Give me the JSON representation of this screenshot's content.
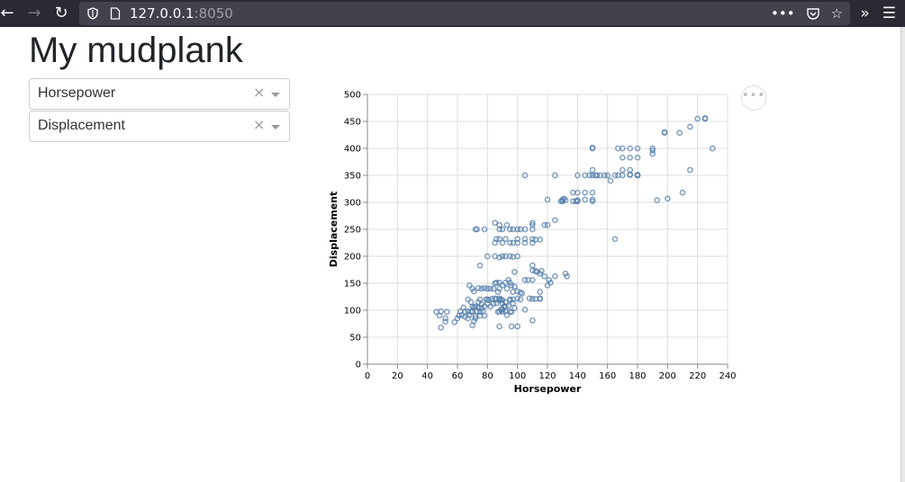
{
  "browser": {
    "url_host": "127.0.0.1",
    "url_port": ":8050"
  },
  "page": {
    "title": "My mudplank"
  },
  "dropdowns": [
    {
      "value": "Horsepower",
      "clear": "×"
    },
    {
      "value": "Displacement",
      "clear": "×"
    }
  ],
  "chart_actions_label": "•••",
  "chart_data": {
    "type": "scatter",
    "xlabel": "Horsepower",
    "ylabel": "Displacement",
    "xlim": [
      0,
      240
    ],
    "ylim": [
      0,
      500
    ],
    "xticks": [
      0,
      20,
      40,
      60,
      80,
      100,
      120,
      140,
      160,
      180,
      200,
      220,
      240
    ],
    "yticks": [
      0,
      50,
      100,
      150,
      200,
      250,
      300,
      350,
      400,
      450,
      500
    ],
    "grid": true,
    "point_color": "#4c78a8",
    "points": [
      [
        46,
        97
      ],
      [
        48,
        90
      ],
      [
        49,
        98
      ],
      [
        52,
        85
      ],
      [
        52,
        79
      ],
      [
        53,
        97
      ],
      [
        49,
        68
      ],
      [
        58,
        78
      ],
      [
        60,
        85
      ],
      [
        61,
        90
      ],
      [
        62,
        98
      ],
      [
        63,
        91
      ],
      [
        64,
        105
      ],
      [
        65,
        97
      ],
      [
        65,
        88
      ],
      [
        67,
        98
      ],
      [
        67,
        85
      ],
      [
        68,
        91
      ],
      [
        69,
        97
      ],
      [
        70,
        72
      ],
      [
        70,
        98
      ],
      [
        71,
        105
      ],
      [
        71,
        80
      ],
      [
        72,
        85
      ],
      [
        72,
        89
      ],
      [
        73,
        98
      ],
      [
        74,
        105
      ],
      [
        75,
        97
      ],
      [
        75,
        90
      ],
      [
        76,
        104
      ],
      [
        67,
        120
      ],
      [
        69,
        115
      ],
      [
        70,
        107
      ],
      [
        72,
        107
      ],
      [
        74,
        115
      ],
      [
        75,
        120
      ],
      [
        76,
        111
      ],
      [
        77,
        98
      ],
      [
        78,
        90
      ],
      [
        78,
        107
      ],
      [
        79,
        120
      ],
      [
        80,
        120
      ],
      [
        80,
        112
      ],
      [
        81,
        119
      ],
      [
        82,
        107
      ],
      [
        83,
        121
      ],
      [
        84,
        112
      ],
      [
        85,
        122
      ],
      [
        86,
        120
      ],
      [
        86,
        113
      ],
      [
        87,
        97
      ],
      [
        87,
        134
      ],
      [
        88,
        119
      ],
      [
        88,
        122
      ],
      [
        89,
        120
      ],
      [
        90,
        112
      ],
      [
        90,
        119
      ],
      [
        90,
        97
      ],
      [
        91,
        107
      ],
      [
        92,
        107
      ],
      [
        92,
        115
      ],
      [
        94,
        108
      ],
      [
        95,
        120
      ],
      [
        95,
        119
      ],
      [
        96,
        97
      ],
      [
        97,
        120
      ],
      [
        97,
        113
      ],
      [
        98,
        104
      ],
      [
        100,
        122
      ],
      [
        102,
        120
      ],
      [
        105,
        101
      ],
      [
        110,
        81
      ],
      [
        88,
        98
      ],
      [
        89,
        101
      ],
      [
        92,
        98
      ],
      [
        95,
        97
      ],
      [
        93,
        91
      ],
      [
        90,
        101
      ],
      [
        96,
        70
      ],
      [
        100,
        70
      ],
      [
        88,
        70
      ],
      [
        68,
        146
      ],
      [
        70,
        140
      ],
      [
        71,
        135
      ],
      [
        74,
        141
      ],
      [
        76,
        140
      ],
      [
        78,
        141
      ],
      [
        80,
        140
      ],
      [
        82,
        140
      ],
      [
        84,
        140
      ],
      [
        85,
        150
      ],
      [
        86,
        151
      ],
      [
        88,
        140
      ],
      [
        88,
        151
      ],
      [
        90,
        146
      ],
      [
        92,
        151
      ],
      [
        93,
        140
      ],
      [
        94,
        156
      ],
      [
        95,
        151
      ],
      [
        96,
        146
      ],
      [
        97,
        134
      ],
      [
        98,
        144
      ],
      [
        100,
        135
      ],
      [
        102,
        133
      ],
      [
        103,
        131
      ],
      [
        105,
        156
      ],
      [
        107,
        156
      ],
      [
        110,
        156
      ],
      [
        110,
        183
      ],
      [
        110,
        174
      ],
      [
        112,
        173
      ],
      [
        113,
        171
      ],
      [
        115,
        168
      ],
      [
        116,
        173
      ],
      [
        118,
        163
      ],
      [
        120,
        146
      ],
      [
        121,
        156
      ],
      [
        122,
        151
      ],
      [
        125,
        163
      ],
      [
        115,
        134
      ],
      [
        132,
        168
      ],
      [
        133,
        163
      ],
      [
        108,
        122
      ],
      [
        110,
        121
      ],
      [
        112,
        121
      ],
      [
        115,
        121
      ],
      [
        115,
        122
      ],
      [
        75,
        183
      ],
      [
        80,
        200
      ],
      [
        85,
        200
      ],
      [
        88,
        198
      ],
      [
        90,
        200
      ],
      [
        92,
        200
      ],
      [
        95,
        200
      ],
      [
        97,
        199
      ],
      [
        98,
        171
      ],
      [
        100,
        200
      ],
      [
        85,
        225
      ],
      [
        86,
        232
      ],
      [
        88,
        232
      ],
      [
        90,
        225
      ],
      [
        92,
        232
      ],
      [
        95,
        225
      ],
      [
        97,
        225
      ],
      [
        100,
        232
      ],
      [
        100,
        225
      ],
      [
        105,
        232
      ],
      [
        105,
        225
      ],
      [
        110,
        232
      ],
      [
        110,
        225
      ],
      [
        112,
        231
      ],
      [
        115,
        231
      ],
      [
        118,
        258
      ],
      [
        120,
        258
      ],
      [
        72,
        250
      ],
      [
        73,
        250
      ],
      [
        78,
        250
      ],
      [
        85,
        262
      ],
      [
        88,
        258
      ],
      [
        88,
        250
      ],
      [
        90,
        250
      ],
      [
        93,
        258
      ],
      [
        95,
        250
      ],
      [
        97,
        250
      ],
      [
        100,
        250
      ],
      [
        102,
        250
      ],
      [
        105,
        250
      ],
      [
        110,
        250
      ],
      [
        110,
        258
      ],
      [
        110,
        262
      ],
      [
        125,
        267
      ],
      [
        129,
        302
      ],
      [
        130,
        302
      ],
      [
        130,
        305
      ],
      [
        131,
        307
      ],
      [
        132,
        304
      ],
      [
        137,
        318
      ],
      [
        137,
        302
      ],
      [
        139,
        302
      ],
      [
        140,
        318
      ],
      [
        140,
        302
      ],
      [
        140,
        304
      ],
      [
        145,
        318
      ],
      [
        145,
        305
      ],
      [
        150,
        318
      ],
      [
        150,
        305
      ],
      [
        150,
        302
      ],
      [
        120,
        305
      ],
      [
        105,
        350
      ],
      [
        125,
        350
      ],
      [
        140,
        350
      ],
      [
        145,
        350
      ],
      [
        148,
        350
      ],
      [
        150,
        350
      ],
      [
        150,
        360
      ],
      [
        152,
        350
      ],
      [
        153,
        350
      ],
      [
        155,
        350
      ],
      [
        158,
        350
      ],
      [
        160,
        350
      ],
      [
        162,
        340
      ],
      [
        165,
        350
      ],
      [
        167,
        350
      ],
      [
        170,
        350
      ],
      [
        175,
        351
      ],
      [
        180,
        350
      ],
      [
        180,
        351
      ],
      [
        165,
        232
      ],
      [
        150,
        400
      ],
      [
        150,
        401
      ],
      [
        167,
        400
      ],
      [
        170,
        400
      ],
      [
        170,
        383
      ],
      [
        175,
        400
      ],
      [
        175,
        383
      ],
      [
        175,
        360
      ],
      [
        180,
        400
      ],
      [
        180,
        383
      ],
      [
        180,
        350
      ],
      [
        170,
        360
      ],
      [
        175,
        351
      ],
      [
        190,
        400
      ],
      [
        190,
        390
      ],
      [
        190,
        396
      ],
      [
        193,
        304
      ],
      [
        198,
        429
      ],
      [
        198,
        430
      ],
      [
        200,
        307
      ],
      [
        208,
        429
      ],
      [
        210,
        318
      ],
      [
        215,
        440
      ],
      [
        215,
        360
      ],
      [
        220,
        455
      ],
      [
        225,
        455
      ],
      [
        225,
        456
      ],
      [
        230,
        400
      ]
    ]
  }
}
